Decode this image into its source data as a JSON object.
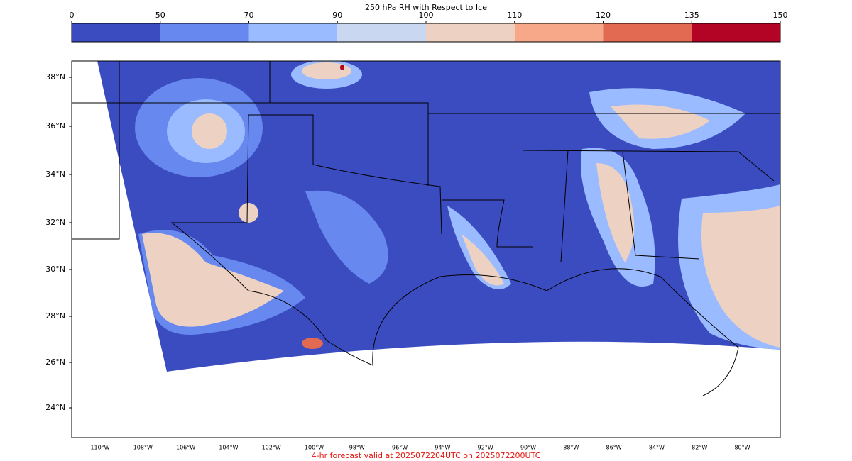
{
  "colorbar": {
    "title": "250 hPa RH with Respect to Ice",
    "ticks": [
      0,
      50,
      70,
      90,
      100,
      110,
      120,
      135,
      150
    ],
    "colors": [
      "#3b4cc0",
      "#6788ee",
      "#9abbff",
      "#c9d7f0",
      "#edd1c2",
      "#f7a889",
      "#e26952",
      "#b40426"
    ]
  },
  "map": {
    "lat_labels": [
      "38°N",
      "36°N",
      "34°N",
      "32°N",
      "30°N",
      "28°N",
      "26°N",
      "24°N"
    ],
    "lon_labels": [
      "110°W",
      "108°W",
      "106°W",
      "104°W",
      "102°W",
      "100°W",
      "98°W",
      "96°W",
      "94°W",
      "92°W",
      "90°W",
      "88°W",
      "86°W",
      "84°W",
      "82°W",
      "80°W"
    ]
  },
  "footer": "4-hr forecast valid at 2025072204UTC on 2025072200UTC"
}
